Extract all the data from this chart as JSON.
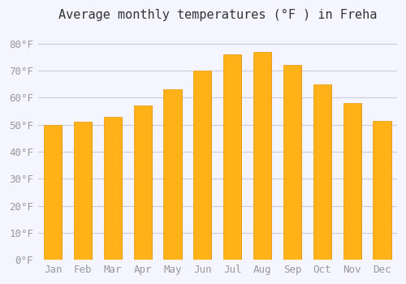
{
  "title": "Average monthly temperatures (°F ) in Freha",
  "months": [
    "Jan",
    "Feb",
    "Mar",
    "Apr",
    "May",
    "Jun",
    "Jul",
    "Aug",
    "Sep",
    "Oct",
    "Nov",
    "Dec"
  ],
  "values": [
    50,
    51,
    53,
    57,
    63,
    70,
    76,
    77,
    72,
    65,
    58,
    51.5
  ],
  "bar_color": "#FFA500",
  "bar_edge_color": "#E08000",
  "background_color": "#F5F5FF",
  "grid_color": "#CCCCDD",
  "ylim": [
    0,
    85
  ],
  "yticks": [
    0,
    10,
    20,
    30,
    40,
    50,
    60,
    70,
    80
  ],
  "title_fontsize": 11,
  "tick_fontsize": 9,
  "tick_color": "#999999",
  "figsize": [
    5.0,
    3.5
  ],
  "dpi": 100
}
